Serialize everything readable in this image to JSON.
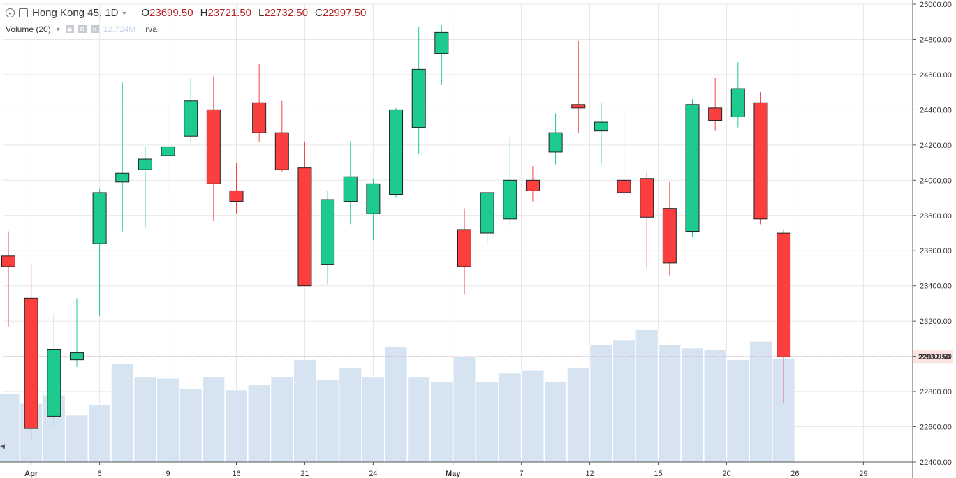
{
  "header": {
    "symbol": "Hong Kong 45, 1D",
    "open_label": "O",
    "open": "23699.50",
    "high_label": "H",
    "high": "23721.50",
    "low_label": "L",
    "low": "22732.50",
    "close_label": "C",
    "close": "22997.50"
  },
  "volume_legend": {
    "label": "Volume (20)",
    "value": "12.724M",
    "ma": "n/a"
  },
  "colors": {
    "up": "#1ecb8f",
    "down": "#fb3e3e",
    "volume": "#d6e3f0",
    "grid": "#e6e6e6",
    "last_price_line": "#c85bbf",
    "last_price_badge": "#fde2e2"
  },
  "chart_data": {
    "type": "candlestick",
    "y_axis": {
      "min": 22400,
      "max": 25000,
      "ticks": [
        "22400.00",
        "22600.00",
        "22800.00",
        "23000.00",
        "23200.00",
        "23400.00",
        "23600.00",
        "23800.00",
        "24000.00",
        "24200.00",
        "24400.00",
        "24600.00",
        "24800.00",
        "25000.00"
      ],
      "last_price_label": "22997.50",
      "last_price": 22997.5
    },
    "x_axis": {
      "labels": [
        {
          "index": 1,
          "text": "Apr"
        },
        {
          "index": 4,
          "text": "6"
        },
        {
          "index": 7,
          "text": "9"
        },
        {
          "index": 10,
          "text": "16"
        },
        {
          "index": 13,
          "text": "21"
        },
        {
          "index": 16,
          "text": "24"
        },
        {
          "index": 19.5,
          "text": "May"
        },
        {
          "index": 22.5,
          "text": "7"
        },
        {
          "index": 25.5,
          "text": "12"
        },
        {
          "index": 28.5,
          "text": "15"
        },
        {
          "index": 31.5,
          "text": "20"
        },
        {
          "index": 34.5,
          "text": "26"
        },
        {
          "index": 37.5,
          "text": "29"
        }
      ]
    },
    "candles": [
      {
        "o": 23570,
        "h": 23710,
        "l": 23170,
        "c": 23510,
        "v": 0.41
      },
      {
        "o": 23330,
        "h": 23520,
        "l": 22530,
        "c": 22590,
        "v": 0.35
      },
      {
        "o": 22660,
        "h": 23240,
        "l": 22600,
        "c": 23040,
        "v": 0.4
      },
      {
        "o": 22980,
        "h": 23330,
        "l": 22940,
        "c": 23020,
        "v": 0.28
      },
      {
        "o": 23640,
        "h": 23950,
        "l": 23230,
        "c": 23930,
        "v": 0.34
      },
      {
        "o": 23990,
        "h": 24560,
        "l": 23710,
        "c": 24040,
        "v": 0.59
      },
      {
        "o": 24060,
        "h": 24190,
        "l": 23730,
        "c": 24120,
        "v": 0.51
      },
      {
        "o": 24140,
        "h": 24420,
        "l": 23940,
        "c": 24190,
        "v": 0.5
      },
      {
        "o": 24250,
        "h": 24580,
        "l": 24220,
        "c": 24450,
        "v": 0.44
      },
      {
        "o": 24400,
        "h": 24590,
        "l": 23770,
        "c": 23980,
        "v": 0.51
      },
      {
        "o": 23940,
        "h": 24100,
        "l": 23810,
        "c": 23880,
        "v": 0.43
      },
      {
        "o": 24440,
        "h": 24660,
        "l": 24220,
        "c": 24270,
        "v": 0.46
      },
      {
        "o": 24270,
        "h": 24450,
        "l": 24050,
        "c": 24060,
        "v": 0.51
      },
      {
        "o": 24070,
        "h": 24220,
        "l": 23400,
        "c": 23400,
        "v": 0.61
      },
      {
        "o": 23520,
        "h": 23940,
        "l": 23410,
        "c": 23890,
        "v": 0.49
      },
      {
        "o": 23880,
        "h": 24220,
        "l": 23750,
        "c": 24020,
        "v": 0.56
      },
      {
        "o": 23810,
        "h": 24010,
        "l": 23660,
        "c": 23980,
        "v": 0.51
      },
      {
        "o": 23920,
        "h": 24410,
        "l": 23900,
        "c": 24400,
        "v": 0.69
      },
      {
        "o": 24300,
        "h": 24870,
        "l": 24150,
        "c": 24630,
        "v": 0.51
      },
      {
        "o": 24720,
        "h": 24880,
        "l": 24540,
        "c": 24840,
        "v": 0.48
      },
      {
        "o": 23720,
        "h": 23840,
        "l": 23350,
        "c": 23510,
        "v": 0.63
      },
      {
        "o": 23700,
        "h": 23930,
        "l": 23630,
        "c": 23930,
        "v": 0.48
      },
      {
        "o": 23780,
        "h": 24240,
        "l": 23750,
        "c": 24000,
        "v": 0.53
      },
      {
        "o": 24000,
        "h": 24080,
        "l": 23880,
        "c": 23940,
        "v": 0.55
      },
      {
        "o": 24160,
        "h": 24380,
        "l": 24090,
        "c": 24270,
        "v": 0.48
      },
      {
        "o": 24430,
        "h": 24790,
        "l": 24270,
        "c": 24410,
        "v": 0.56
      },
      {
        "o": 24280,
        "h": 24440,
        "l": 24090,
        "c": 24330,
        "v": 0.7
      },
      {
        "o": 24000,
        "h": 24390,
        "l": 23920,
        "c": 23930,
        "v": 0.73
      },
      {
        "o": 24010,
        "h": 24050,
        "l": 23500,
        "c": 23790,
        "v": 0.79
      },
      {
        "o": 23840,
        "h": 23990,
        "l": 23460,
        "c": 23530,
        "v": 0.7
      },
      {
        "o": 23710,
        "h": 24460,
        "l": 23680,
        "c": 24430,
        "v": 0.68
      },
      {
        "o": 24410,
        "h": 24580,
        "l": 24280,
        "c": 24340,
        "v": 0.67
      },
      {
        "o": 24360,
        "h": 24670,
        "l": 24300,
        "c": 24520,
        "v": 0.61
      },
      {
        "o": 24440,
        "h": 24500,
        "l": 23750,
        "c": 23780,
        "v": 0.72
      },
      {
        "o": 23699.5,
        "h": 23721.5,
        "l": 22732.5,
        "c": 22997.5,
        "v": 0.62
      }
    ]
  }
}
